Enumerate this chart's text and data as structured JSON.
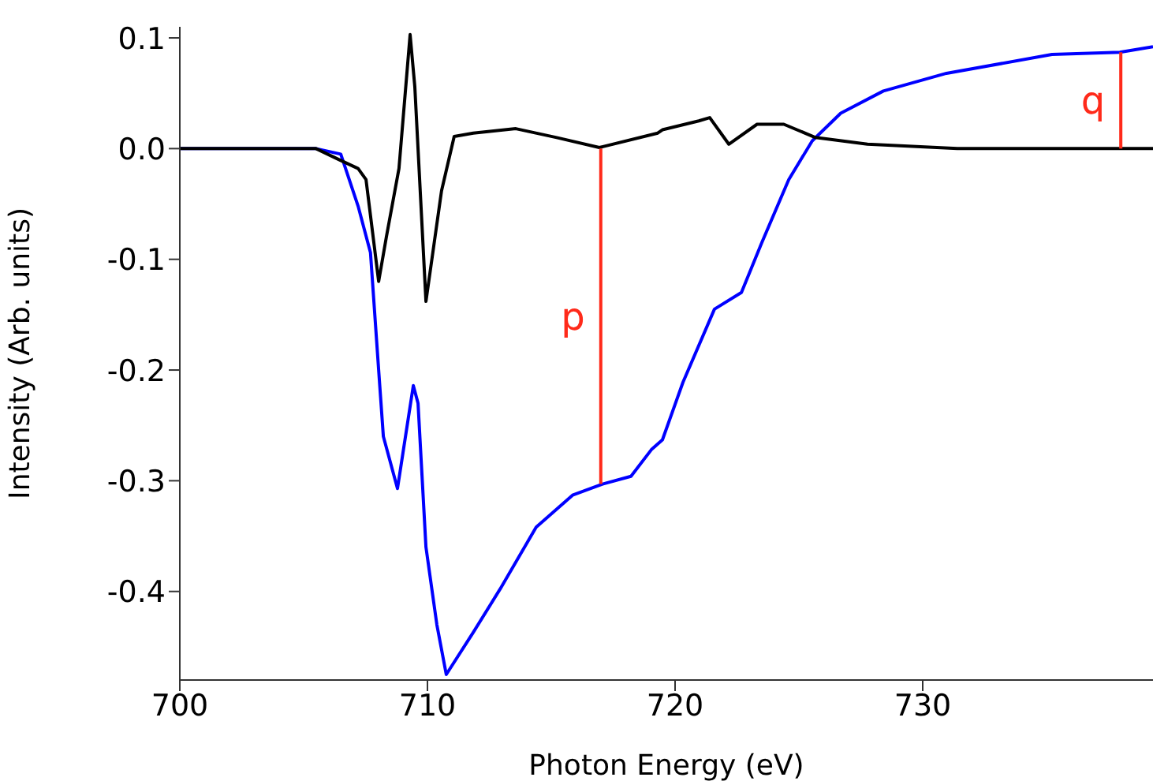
{
  "chart_data": {
    "type": "line",
    "xlabel": "Photon Energy (eV)",
    "ylabel": "Intensity (Arb. units)",
    "xlim": [
      700,
      739.3
    ],
    "xticks": [
      700,
      710,
      720,
      730
    ],
    "ylim": [
      -0.48,
      0.11
    ],
    "yticks": [
      0.1,
      {
        "value": 0,
        "label": "0.0"
      },
      -0.1,
      -0.2,
      -0.3,
      -0.4
    ],
    "grid": false,
    "legend": false,
    "marker": "none",
    "line_style": "solid",
    "series": [
      {
        "color": "#0000ff",
        "x": [
          700,
          705.5,
          706.5,
          707.2,
          707.7,
          708.03,
          708.22,
          708.79,
          709.43,
          709.62,
          709.94,
          710.38,
          710.76,
          711.85,
          712.93,
          714.39,
          715.86,
          717.07,
          718.22,
          719.04,
          719.49,
          720.32,
          721.59,
          722.68,
          723.5,
          724.59,
          725.54,
          726.69,
          728.41,
          730.96,
          735.22,
          737.96,
          739.3
        ],
        "values": [
          0,
          0,
          -0.005,
          -0.052,
          -0.094,
          -0.2,
          -0.26,
          -0.307,
          -0.214,
          -0.23,
          -0.36,
          -0.43,
          -0.475,
          -0.437,
          -0.398,
          -0.342,
          -0.313,
          -0.303,
          -0.296,
          -0.272,
          -0.263,
          -0.211,
          -0.145,
          -0.13,
          -0.085,
          -0.028,
          0.007,
          0.032,
          0.052,
          0.068,
          0.085,
          0.087,
          0.092
        ]
      },
      {
        "color": "#000000",
        "x": [
          700,
          705.5,
          706.43,
          707.2,
          707.52,
          708.03,
          708.34,
          708.85,
          709.3,
          709.49,
          709.94,
          710.57,
          711.08,
          711.85,
          713.57,
          715.22,
          716.94,
          719.3,
          719.49,
          720.96,
          721.4,
          722.17,
          723.31,
          724.39,
          725.67,
          727.77,
          731.4,
          739.3
        ],
        "values": [
          0,
          0,
          -0.01,
          -0.018,
          -0.028,
          -0.12,
          -0.08,
          -0.018,
          0.103,
          0.056,
          -0.138,
          -0.038,
          0.011,
          0.014,
          0.018,
          0.01,
          0.001,
          0.014,
          0.017,
          0.025,
          0.028,
          0.004,
          0.022,
          0.022,
          0.01,
          0.004,
          0,
          0
        ]
      },
      {
        "name": "p",
        "color": "#ff2a1a",
        "x": [
          717,
          717
        ],
        "values": [
          0,
          -0.303
        ]
      },
      {
        "name": "q",
        "color": "#ff2a1a",
        "x": [
          738,
          738
        ],
        "values": [
          0,
          0.087
        ]
      }
    ]
  }
}
